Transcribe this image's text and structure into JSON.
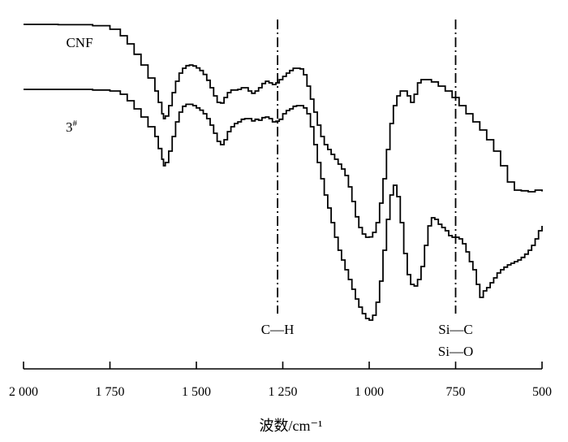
{
  "chart_data": {
    "type": "line",
    "title": "",
    "xlabel": "波数/cm⁻¹",
    "ylabel": "",
    "xlim": [
      2000,
      500
    ],
    "x_reversed": true,
    "y_axis_visible": false,
    "grid": false,
    "legend": "none",
    "x_ticks": [
      {
        "value": 2000,
        "label": "2 000"
      },
      {
        "value": 1750,
        "label": "1 750"
      },
      {
        "value": 1500,
        "label": "1 500"
      },
      {
        "value": 1250,
        "label": "1 250"
      },
      {
        "value": 1000,
        "label": "1 000"
      },
      {
        "value": 750,
        "label": "750"
      },
      {
        "value": 500,
        "label": "500"
      }
    ],
    "ylim": [
      0,
      100
    ],
    "series": [
      {
        "name": "CNF",
        "label_text": "CNF",
        "color": "#000000",
        "x": [
          2000,
          1900,
          1800,
          1750,
          1720,
          1700,
          1680,
          1660,
          1640,
          1620,
          1610,
          1600,
          1595,
          1590,
          1580,
          1570,
          1560,
          1550,
          1540,
          1530,
          1520,
          1510,
          1500,
          1490,
          1480,
          1470,
          1460,
          1450,
          1440,
          1430,
          1420,
          1410,
          1400,
          1390,
          1380,
          1370,
          1360,
          1350,
          1340,
          1330,
          1320,
          1310,
          1300,
          1290,
          1280,
          1270,
          1260,
          1250,
          1240,
          1230,
          1220,
          1210,
          1200,
          1190,
          1180,
          1170,
          1160,
          1150,
          1140,
          1130,
          1120,
          1110,
          1100,
          1090,
          1080,
          1070,
          1060,
          1050,
          1040,
          1030,
          1020,
          1010,
          1000,
          990,
          980,
          970,
          960,
          950,
          940,
          930,
          920,
          910,
          900,
          890,
          880,
          870,
          860,
          850,
          840,
          820,
          800,
          780,
          760,
          740,
          720,
          700,
          680,
          660,
          640,
          620,
          600,
          580,
          560,
          540,
          520,
          500
        ],
        "values": [
          95.0,
          94.9,
          94.6,
          93.5,
          91.5,
          89.0,
          85.8,
          82.5,
          78.5,
          74.5,
          71.0,
          67.5,
          66.0,
          66.8,
          70.0,
          74.0,
          77.5,
          80.0,
          81.5,
          82.3,
          82.5,
          82.2,
          81.6,
          80.8,
          79.6,
          77.8,
          75.5,
          73.0,
          71.0,
          70.8,
          72.5,
          74.0,
          74.8,
          74.8,
          75.0,
          75.5,
          75.5,
          74.5,
          73.8,
          74.5,
          75.5,
          76.8,
          77.5,
          77.0,
          76.5,
          77.0,
          78.0,
          79.0,
          80.0,
          80.8,
          81.5,
          81.5,
          81.3,
          79.5,
          76.0,
          72.0,
          68.0,
          64.0,
          60.5,
          58.0,
          56.5,
          55.0,
          53.5,
          52.0,
          50.5,
          48.5,
          45.0,
          40.5,
          35.8,
          32.5,
          30.5,
          29.5,
          29.6,
          31.0,
          34.0,
          40.0,
          47.5,
          56.5,
          64.5,
          70.0,
          73.0,
          74.5,
          74.5,
          73.0,
          71.0,
          73.5,
          77.0,
          78.0,
          78.0,
          77.3,
          76.0,
          74.5,
          72.5,
          70.0,
          67.5,
          65.0,
          62.5,
          59.5,
          56.0,
          51.5,
          46.5,
          44.0,
          43.8,
          43.5,
          44.0,
          43.6
        ]
      },
      {
        "name": "3#",
        "label_text": "3",
        "label_sup": "#",
        "color": "#000000",
        "x": [
          2000,
          1900,
          1800,
          1750,
          1720,
          1700,
          1680,
          1660,
          1640,
          1620,
          1610,
          1600,
          1595,
          1590,
          1580,
          1570,
          1560,
          1550,
          1540,
          1530,
          1520,
          1510,
          1500,
          1490,
          1480,
          1470,
          1460,
          1450,
          1440,
          1430,
          1420,
          1410,
          1400,
          1390,
          1380,
          1370,
          1360,
          1350,
          1340,
          1330,
          1320,
          1310,
          1300,
          1290,
          1280,
          1270,
          1260,
          1250,
          1240,
          1230,
          1220,
          1210,
          1200,
          1190,
          1180,
          1170,
          1160,
          1150,
          1140,
          1130,
          1120,
          1110,
          1100,
          1090,
          1080,
          1070,
          1060,
          1050,
          1040,
          1030,
          1020,
          1010,
          1000,
          990,
          980,
          970,
          960,
          950,
          940,
          930,
          920,
          910,
          900,
          890,
          880,
          870,
          860,
          850,
          840,
          830,
          820,
          810,
          800,
          790,
          780,
          770,
          760,
          750,
          740,
          730,
          720,
          710,
          700,
          690,
          680,
          670,
          660,
          650,
          640,
          630,
          620,
          610,
          600,
          590,
          580,
          570,
          560,
          550,
          540,
          530,
          520,
          510,
          500
        ],
        "values": [
          75.0,
          75.0,
          74.8,
          74.5,
          73.5,
          71.5,
          69.0,
          66.5,
          63.5,
          60.5,
          56.8,
          53.5,
          51.5,
          52.5,
          56.0,
          60.5,
          65.0,
          68.0,
          69.8,
          70.4,
          70.4,
          70.0,
          69.3,
          68.6,
          67.5,
          66.0,
          64.0,
          61.5,
          59.0,
          58.0,
          59.5,
          62.0,
          63.5,
          64.5,
          65.0,
          65.8,
          66.0,
          66.0,
          65.3,
          65.8,
          65.5,
          66.3,
          66.5,
          66.0,
          65.0,
          65.2,
          65.8,
          67.5,
          68.5,
          69.0,
          69.8,
          70.0,
          70.0,
          69.3,
          67.5,
          63.5,
          58.0,
          52.5,
          47.5,
          42.5,
          38.5,
          34.0,
          29.5,
          25.5,
          22.5,
          19.5,
          16.5,
          13.5,
          10.5,
          8.0,
          6.0,
          4.5,
          4.0,
          5.5,
          9.5,
          16.0,
          25.5,
          35.0,
          42.5,
          45.5,
          42.0,
          34.0,
          24.5,
          18.0,
          15.0,
          14.5,
          16.5,
          20.5,
          27.0,
          33.0,
          35.5,
          35.0,
          33.5,
          32.5,
          31.5,
          30.0,
          29.5,
          29.5,
          29.0,
          27.5,
          25.0,
          22.0,
          19.5,
          15.0,
          11.0,
          13.0,
          14.0,
          15.5,
          17.0,
          18.5,
          19.5,
          20.3,
          21.0,
          21.5,
          22.0,
          22.5,
          23.3,
          24.3,
          25.5,
          27.0,
          29.0,
          31.5,
          33.0
        ]
      }
    ],
    "reference_lines": [
      {
        "x": 1265,
        "style": "dash-dot",
        "label_lines": [
          "C—H"
        ]
      },
      {
        "x": 750,
        "style": "dash-dot",
        "label_lines": [
          "Si—C",
          "Si—O"
        ]
      }
    ]
  }
}
